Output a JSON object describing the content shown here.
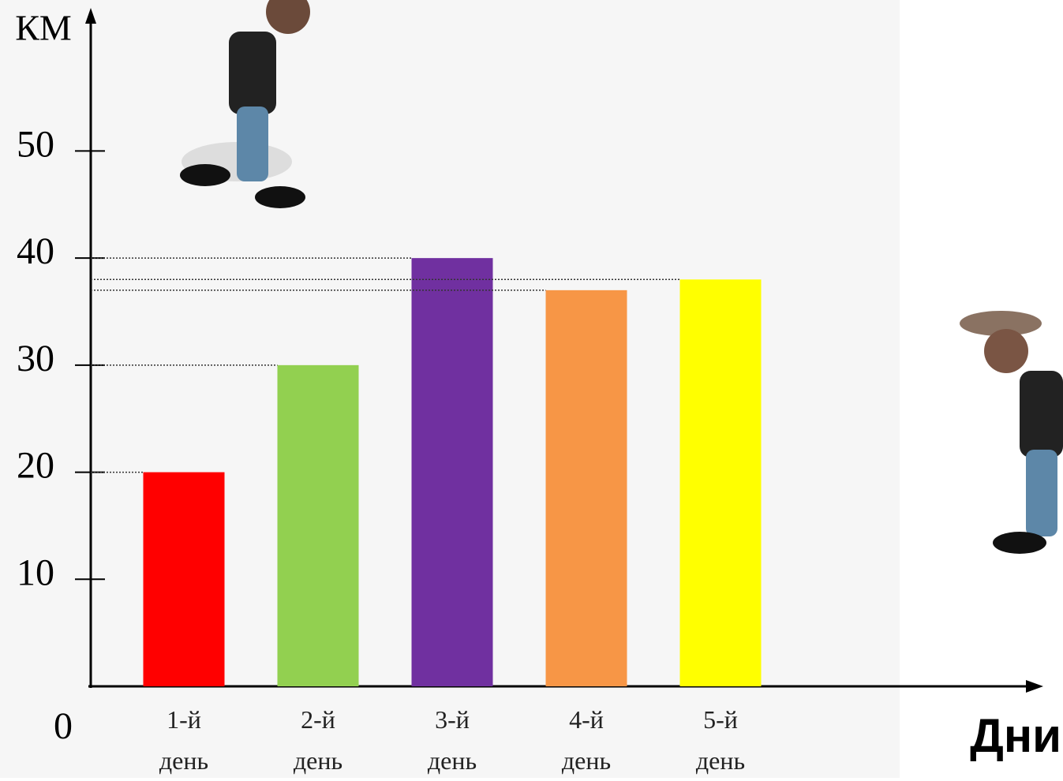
{
  "chart_data": {
    "type": "bar",
    "y_label": "КМ",
    "x_label": "Дни",
    "categories": [
      "1-й день",
      "2-й день",
      "3-й день",
      "4-й день",
      "5-й день"
    ],
    "values": [
      20,
      30,
      40,
      37,
      38
    ],
    "colors": [
      "#ff0000",
      "#92d050",
      "#7030a0",
      "#f79646",
      "#ffff00"
    ],
    "ylim": [
      0,
      63
    ],
    "yticks": [
      0,
      10,
      20,
      30,
      40,
      50
    ]
  }
}
